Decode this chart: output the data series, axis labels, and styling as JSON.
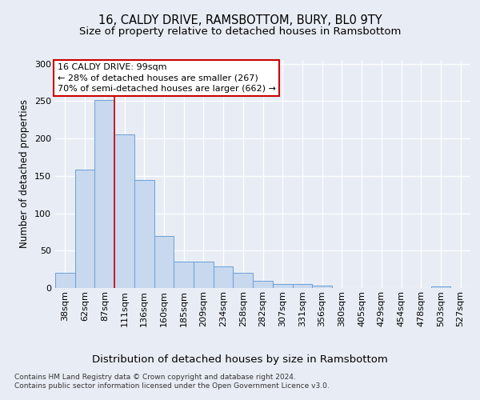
{
  "title": "16, CALDY DRIVE, RAMSBOTTOM, BURY, BL0 9TY",
  "subtitle": "Size of property relative to detached houses in Ramsbottom",
  "xlabel": "Distribution of detached houses by size in Ramsbottom",
  "ylabel": "Number of detached properties",
  "categories": [
    "38sqm",
    "62sqm",
    "87sqm",
    "111sqm",
    "136sqm",
    "160sqm",
    "185sqm",
    "209sqm",
    "234sqm",
    "258sqm",
    "282sqm",
    "307sqm",
    "331sqm",
    "356sqm",
    "380sqm",
    "405sqm",
    "429sqm",
    "454sqm",
    "478sqm",
    "503sqm",
    "527sqm"
  ],
  "values": [
    20,
    158,
    252,
    205,
    145,
    70,
    35,
    35,
    29,
    20,
    10,
    5,
    5,
    3,
    0,
    0,
    0,
    0,
    0,
    2,
    0
  ],
  "bar_color": "#c8d8ee",
  "bar_edge_color": "#6a9fd8",
  "vline_x_index": 3,
  "vline_color": "#cc0000",
  "annotation_text": "16 CALDY DRIVE: 99sqm\n← 28% of detached houses are smaller (267)\n70% of semi-detached houses are larger (662) →",
  "annotation_box_color": "white",
  "annotation_box_edge": "#cc0000",
  "bg_color": "#e8edf5",
  "plot_bg_color": "#e8edf5",
  "ylim": [
    0,
    305
  ],
  "yticks": [
    0,
    50,
    100,
    150,
    200,
    250,
    300
  ],
  "footer": "Contains HM Land Registry data © Crown copyright and database right 2024.\nContains public sector information licensed under the Open Government Licence v3.0.",
  "title_fontsize": 10.5,
  "subtitle_fontsize": 9.5,
  "xlabel_fontsize": 9.5,
  "ylabel_fontsize": 8.5,
  "tick_fontsize": 8,
  "annotation_fontsize": 8,
  "footer_fontsize": 6.5
}
